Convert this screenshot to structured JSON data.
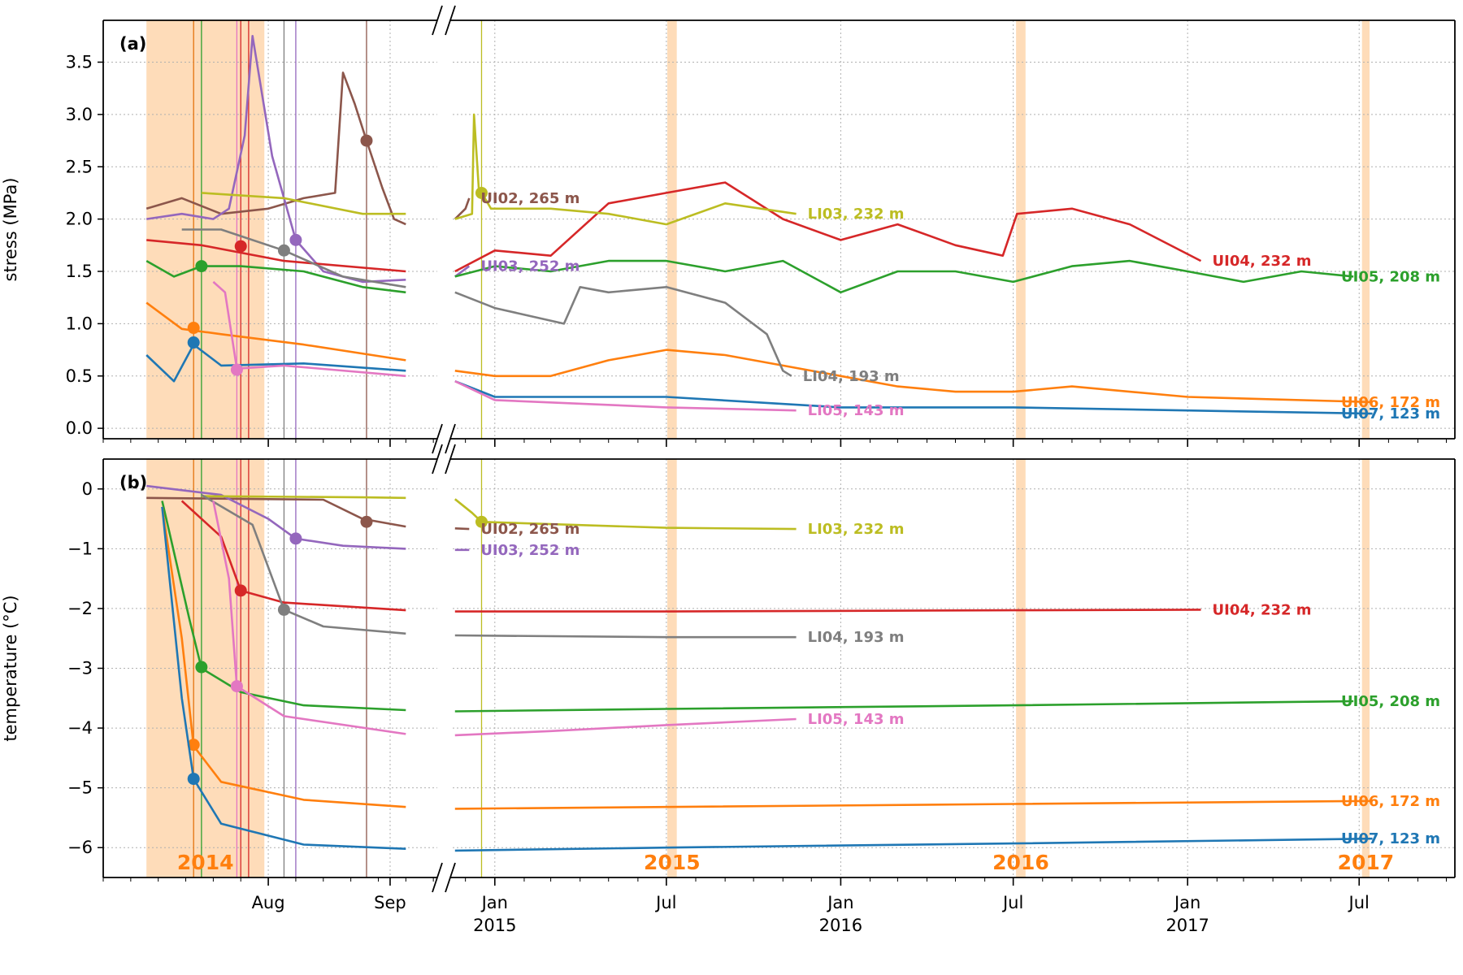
{
  "colors": {
    "UI07": "#1f77b4",
    "UI06": "#ff7f0e",
    "UI05": "#2ca02c",
    "UI04": "#d62728",
    "UI03": "#9467bd",
    "UI02": "#8c564b",
    "LI05": "#e377c2",
    "LI04": "#7f7f7f",
    "LI03": "#bcbd22",
    "season": "#fdd0a2"
  },
  "chart_data": [
    {
      "type": "line",
      "panel": "(a)",
      "ylabel": "stress (MPa)",
      "ylim": [
        -0.1,
        3.9
      ],
      "yticks": [
        "0.0",
        "0.5",
        "1.0",
        "1.5",
        "2.0",
        "2.5",
        "3.0",
        "3.5"
      ],
      "grid": true,
      "series": [
        {
          "name": "UI02, 265 m",
          "key": "UI02",
          "x": [
            "2014-07-01",
            "2014-07-10",
            "2014-07-20",
            "2014-08-01",
            "2014-08-10",
            "2014-08-18",
            "2014-08-20",
            "2014-08-23",
            "2014-08-26",
            "2014-08-30",
            "2014-09-02",
            "2014-09-05",
            "2014-11-20",
            "2014-12-01",
            "2014-12-05"
          ],
          "y": [
            2.1,
            2.2,
            2.05,
            2.1,
            2.2,
            2.25,
            3.4,
            3.1,
            2.75,
            2.3,
            2.0,
            1.95,
            2.0,
            2.1,
            2.2
          ],
          "marker_x": "2014-08-26",
          "marker_y": 2.75
        },
        {
          "name": "UI03, 252 m",
          "key": "UI03",
          "x": [
            "2014-07-01",
            "2014-07-10",
            "2014-07-18",
            "2014-07-22",
            "2014-07-26",
            "2014-07-28",
            "2014-08-02",
            "2014-08-08",
            "2014-08-15",
            "2014-08-25",
            "2014-09-05",
            "2014-11-20",
            "2014-12-05"
          ],
          "y": [
            2.0,
            2.05,
            2.0,
            2.1,
            2.8,
            3.75,
            2.6,
            1.8,
            1.5,
            1.4,
            1.42,
            1.45,
            1.55
          ],
          "marker_x": "2014-08-08",
          "marker_y": 1.8
        },
        {
          "name": "UI04, 232 m",
          "key": "UI04",
          "x": [
            "2014-07-01",
            "2014-07-15",
            "2014-08-05",
            "2014-09-05",
            "2014-11-20",
            "2015-01-01",
            "2015-03-01",
            "2015-05-01",
            "2015-07-01",
            "2015-09-01",
            "2015-11-01",
            "2016-01-01",
            "2016-03-01",
            "2016-05-01",
            "2016-06-20",
            "2016-07-05",
            "2016-09-01",
            "2016-11-01",
            "2017-01-15"
          ],
          "y": [
            1.8,
            1.75,
            1.6,
            1.5,
            1.5,
            1.7,
            1.65,
            2.15,
            2.25,
            2.35,
            2.0,
            1.8,
            1.95,
            1.75,
            1.65,
            2.05,
            2.1,
            1.95,
            1.6
          ],
          "marker_x": "2014-07-25",
          "marker_y": 1.74
        },
        {
          "name": "UI05, 208 m",
          "key": "UI05",
          "x": [
            "2014-07-01",
            "2014-07-08",
            "2014-07-15",
            "2014-07-25",
            "2014-08-10",
            "2014-08-25",
            "2014-09-05",
            "2014-11-20",
            "2015-01-01",
            "2015-03-01",
            "2015-05-01",
            "2015-07-01",
            "2015-09-01",
            "2015-11-01",
            "2016-01-01",
            "2016-03-01",
            "2016-05-01",
            "2016-07-01",
            "2016-09-01",
            "2016-11-01",
            "2017-01-01",
            "2017-03-01",
            "2017-05-01",
            "2017-06-25"
          ],
          "y": [
            1.6,
            1.45,
            1.55,
            1.55,
            1.5,
            1.35,
            1.3,
            1.45,
            1.55,
            1.5,
            1.6,
            1.6,
            1.5,
            1.6,
            1.3,
            1.5,
            1.5,
            1.4,
            1.55,
            1.6,
            1.5,
            1.4,
            1.5,
            1.45
          ],
          "marker_x": "2014-07-15",
          "marker_y": 1.55
        },
        {
          "name": "UI06, 172 m",
          "key": "UI06",
          "x": [
            "2014-07-01",
            "2014-07-10",
            "2014-07-20",
            "2014-08-10",
            "2014-09-05",
            "2014-11-20",
            "2015-01-01",
            "2015-03-01",
            "2015-05-01",
            "2015-07-01",
            "2015-09-01",
            "2015-11-01",
            "2016-01-01",
            "2016-03-01",
            "2016-05-01",
            "2016-07-01",
            "2016-09-01",
            "2017-01-01",
            "2017-07-15"
          ],
          "y": [
            1.2,
            0.95,
            0.9,
            0.8,
            0.65,
            0.55,
            0.5,
            0.5,
            0.65,
            0.75,
            0.7,
            0.6,
            0.5,
            0.4,
            0.35,
            0.35,
            0.4,
            0.3,
            0.25
          ],
          "marker_x": "2014-07-13",
          "marker_y": 0.96
        },
        {
          "name": "UI07, 123 m",
          "key": "UI07",
          "x": [
            "2014-07-01",
            "2014-07-08",
            "2014-07-13",
            "2014-07-20",
            "2014-08-10",
            "2014-09-05",
            "2014-11-20",
            "2015-01-01",
            "2015-07-01",
            "2016-01-01",
            "2016-07-01",
            "2017-01-01",
            "2017-07-15"
          ],
          "y": [
            0.7,
            0.45,
            0.8,
            0.6,
            0.62,
            0.55,
            0.45,
            0.3,
            0.3,
            0.2,
            0.2,
            0.17,
            0.14
          ],
          "marker_x": "2014-07-13",
          "marker_y": 0.82
        },
        {
          "name": "LI03, 232 m",
          "key": "LI03",
          "x": [
            "2014-07-15",
            "2014-08-05",
            "2014-08-25",
            "2014-09-05",
            "2014-11-20",
            "2014-12-08",
            "2014-12-10",
            "2014-12-15",
            "2014-12-28",
            "2015-03-01",
            "2015-05-01",
            "2015-07-01",
            "2015-09-01",
            "2015-11-15"
          ],
          "y": [
            2.25,
            2.2,
            2.05,
            2.05,
            2.0,
            2.05,
            3.0,
            2.3,
            2.1,
            2.1,
            2.05,
            1.95,
            2.15,
            2.05
          ],
          "marker_x": "2014-12-18",
          "marker_y": 2.25
        },
        {
          "name": "LI04, 193 m",
          "key": "LI04",
          "x": [
            "2014-07-10",
            "2014-07-20",
            "2014-08-05",
            "2014-08-20",
            "2014-09-05",
            "2014-11-20",
            "2015-01-01",
            "2015-03-15",
            "2015-04-01",
            "2015-05-01",
            "2015-07-01",
            "2015-09-01",
            "2015-10-15",
            "2015-11-01",
            "2015-11-10"
          ],
          "y": [
            1.9,
            1.9,
            1.7,
            1.45,
            1.35,
            1.3,
            1.15,
            1.0,
            1.35,
            1.3,
            1.35,
            1.2,
            0.9,
            0.55,
            0.5
          ],
          "marker_x": "2014-08-05",
          "marker_y": 1.7
        },
        {
          "name": "LI05, 143 m",
          "key": "LI05",
          "x": [
            "2014-07-18",
            "2014-07-21",
            "2014-07-24",
            "2014-08-05",
            "2014-09-05",
            "2014-11-20",
            "2015-01-01",
            "2015-07-01",
            "2015-11-15"
          ],
          "y": [
            1.4,
            1.3,
            0.57,
            0.6,
            0.5,
            0.45,
            0.27,
            0.2,
            0.17
          ],
          "marker_x": "2014-07-24",
          "marker_y": 0.56
        }
      ]
    },
    {
      "type": "line",
      "panel": "(b)",
      "ylabel": "temperature (°C)",
      "ylim": [
        -6.5,
        0.5
      ],
      "yticks": [
        "0",
        "−1",
        "−2",
        "−3",
        "−4",
        "−5",
        "−6"
      ],
      "grid": true,
      "xticks": [
        {
          "label": "Aug",
          "x": "2014-08-01"
        },
        {
          "label": "Sep",
          "x": "2014-09-01"
        },
        {
          "label": "Jan\n2015",
          "x": "2015-01-01"
        },
        {
          "label": "Jul",
          "x": "2015-07-01"
        },
        {
          "label": "Jan\n2016",
          "x": "2016-01-01"
        },
        {
          "label": "Jul",
          "x": "2016-07-01"
        },
        {
          "label": "Jan\n2017",
          "x": "2017-01-01"
        },
        {
          "label": "Jul",
          "x": "2017-07-01"
        }
      ],
      "year_labels": [
        "2014",
        "2015",
        "2016",
        "2017"
      ],
      "series": [
        {
          "name": "UI02, 265 m",
          "key": "UI02",
          "x": [
            "2014-07-01",
            "2014-08-15",
            "2014-08-25",
            "2014-09-05",
            "2014-11-20",
            "2014-12-05"
          ],
          "y": [
            -0.15,
            -0.18,
            -0.5,
            -0.63,
            -0.66,
            -0.67
          ],
          "marker_x": "2014-08-26",
          "marker_y": -0.55
        },
        {
          "name": "UI03, 252 m",
          "key": "UI03",
          "x": [
            "2014-07-01",
            "2014-07-20",
            "2014-08-01",
            "2014-08-08",
            "2014-08-20",
            "2014-09-05",
            "2014-11-20",
            "2014-12-05"
          ],
          "y": [
            0.05,
            -0.1,
            -0.5,
            -0.83,
            -0.95,
            -1.0,
            -1.02,
            -1.02
          ],
          "marker_x": "2014-08-08",
          "marker_y": -0.83
        },
        {
          "name": "UI04, 232 m",
          "key": "UI04",
          "x": [
            "2014-07-10",
            "2014-07-20",
            "2014-07-25",
            "2014-08-05",
            "2014-09-05",
            "2014-11-20",
            "2015-07-01",
            "2016-07-01",
            "2017-01-15"
          ],
          "y": [
            -0.2,
            -0.8,
            -1.7,
            -1.9,
            -2.03,
            -2.05,
            -2.05,
            -2.03,
            -2.02
          ],
          "marker_x": "2014-07-25",
          "marker_y": -1.7
        },
        {
          "name": "UI05, 208 m",
          "key": "UI05",
          "x": [
            "2014-07-05",
            "2014-07-12",
            "2014-07-15",
            "2014-07-25",
            "2014-08-10",
            "2014-09-05",
            "2014-11-20",
            "2015-07-01",
            "2016-07-01",
            "2017-06-25"
          ],
          "y": [
            -0.2,
            -2.2,
            -3.0,
            -3.4,
            -3.62,
            -3.7,
            -3.72,
            -3.68,
            -3.62,
            -3.55
          ],
          "marker_x": "2014-07-15",
          "marker_y": -2.98
        },
        {
          "name": "UI06, 172 m",
          "key": "UI06",
          "x": [
            "2014-07-05",
            "2014-07-10",
            "2014-07-13",
            "2014-07-20",
            "2014-08-10",
            "2014-09-05",
            "2014-11-20",
            "2015-07-01",
            "2016-07-01",
            "2017-07-15"
          ],
          "y": [
            -0.3,
            -2.5,
            -4.3,
            -4.9,
            -5.2,
            -5.32,
            -5.35,
            -5.32,
            -5.27,
            -5.22
          ],
          "marker_x": "2014-07-13",
          "marker_y": -4.28
        },
        {
          "name": "UI07, 123 m",
          "key": "UI07",
          "x": [
            "2014-07-05",
            "2014-07-10",
            "2014-07-13",
            "2014-07-20",
            "2014-08-10",
            "2014-09-05",
            "2014-11-20",
            "2015-07-01",
            "2016-07-01",
            "2017-07-15"
          ],
          "y": [
            -0.3,
            -3.5,
            -4.85,
            -5.6,
            -5.95,
            -6.02,
            -6.05,
            -6.0,
            -5.93,
            -5.85
          ],
          "marker_x": "2014-07-13",
          "marker_y": -4.85
        },
        {
          "name": "LI03, 232 m",
          "key": "LI03",
          "x": [
            "2014-07-15",
            "2014-08-25",
            "2014-09-05",
            "2014-11-20",
            "2014-12-08",
            "2014-12-18",
            "2015-07-01",
            "2015-11-15"
          ],
          "y": [
            -0.12,
            -0.14,
            -0.15,
            -0.17,
            -0.4,
            -0.55,
            -0.65,
            -0.67
          ],
          "marker_x": "2014-12-18",
          "marker_y": -0.55
        },
        {
          "name": "LI04, 193 m",
          "key": "LI04",
          "x": [
            "2014-07-15",
            "2014-07-28",
            "2014-08-05",
            "2014-08-15",
            "2014-09-05",
            "2014-11-20",
            "2015-07-01",
            "2015-11-15"
          ],
          "y": [
            -0.1,
            -0.6,
            -2.02,
            -2.3,
            -2.42,
            -2.45,
            -2.48,
            -2.48
          ],
          "marker_x": "2014-08-05",
          "marker_y": -2.02
        },
        {
          "name": "LI05, 143 m",
          "key": "LI05",
          "x": [
            "2014-07-18",
            "2014-07-22",
            "2014-07-24",
            "2014-08-05",
            "2014-09-05",
            "2014-11-20",
            "2015-03-01",
            "2015-07-01",
            "2015-11-15"
          ],
          "y": [
            -0.2,
            -1.5,
            -3.3,
            -3.8,
            -4.1,
            -4.12,
            -4.05,
            -3.95,
            -3.85
          ],
          "marker_x": "2014-07-24",
          "marker_y": -3.3
        }
      ]
    }
  ],
  "season_bands": [
    [
      "2014-07-01",
      "2014-07-31"
    ],
    [
      "2015-07-02",
      "2015-07-12"
    ],
    [
      "2016-07-04",
      "2016-07-14"
    ],
    [
      "2017-07-04",
      "2017-07-12"
    ]
  ],
  "event_lines": [
    {
      "key": "UI07",
      "x": "2014-07-13"
    },
    {
      "key": "UI06",
      "x": "2014-07-13"
    },
    {
      "key": "UI05",
      "x": "2014-07-15"
    },
    {
      "key": "LI05",
      "x": "2014-07-24"
    },
    {
      "key": "UI04",
      "x": "2014-07-25"
    },
    {
      "key": "UI04",
      "x": "2014-07-27"
    },
    {
      "key": "LI04",
      "x": "2014-08-05"
    },
    {
      "key": "UI03",
      "x": "2014-08-08"
    },
    {
      "key": "UI02",
      "x": "2014-08-26"
    },
    {
      "key": "LI03",
      "x": "2014-12-18"
    }
  ]
}
